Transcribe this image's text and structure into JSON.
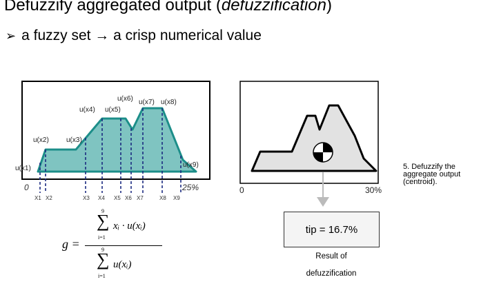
{
  "heading": {
    "text": "Defuzzify aggregated output (",
    "italic": "defuzzification",
    "close": ")"
  },
  "bullet": {
    "marker": "➢",
    "text": "a fuzzy set → a crisp numerical value"
  },
  "left_figure": {
    "u_labels": [
      "u(x1)",
      "u(x2)",
      "u(x3)",
      "u(x4)",
      "u(x5)",
      "u(x6)",
      "u(x7)",
      "u(x8)",
      "u(x9)"
    ],
    "x_labels": [
      "X1",
      "X2",
      "X3",
      "X4",
      "X5",
      "X6",
      "X7",
      "X8",
      "X9"
    ],
    "axis_start": "0",
    "axis_end": "25%",
    "fill_color": "#7fc4c1",
    "edge_color": "#1c8e89"
  },
  "formula": {
    "lhs": "g =",
    "numerator": "xᵢ · u(xᵢ)",
    "denominator": "u(xᵢ)",
    "upper_limit": "9",
    "lower_limit": "i=1"
  },
  "right_figure": {
    "axis_start": "0",
    "axis_end": "30%",
    "tip_result": "tip = 16.7%",
    "caption_line1": "Result of",
    "caption_line2": "defuzzification",
    "side_note": "5. Defuzzify the aggregate output (centroid)."
  }
}
